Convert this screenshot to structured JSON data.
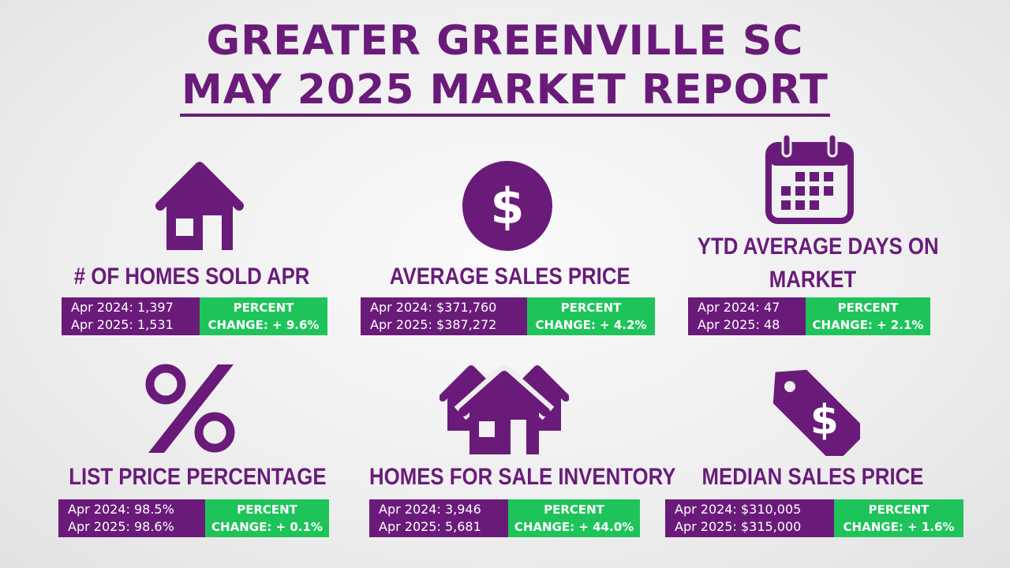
{
  "header": {
    "line1": "GREATER GREENVILLE SC",
    "line2": "MAY 2025 MARKET REPORT"
  },
  "colors": {
    "purple": "#6a1b7a",
    "green": "#1ec45a"
  },
  "cards": [
    {
      "icon": "house-icon",
      "title": "# OF HOMES SOLD APR",
      "line1": "Apr 2024: 1,397",
      "line2": "Apr 2025: 1,531",
      "pct1": "PERCENT",
      "pct2": "CHANGE: + 9.6%"
    },
    {
      "icon": "dollar-icon",
      "title": "AVERAGE SALES PRICE",
      "line1": "Apr 2024: $371,760",
      "line2": "Apr 2025: $387,272",
      "pct1": "PERCENT",
      "pct2": "CHANGE: + 4.2%"
    },
    {
      "icon": "calendar-icon",
      "title_a": "YTD AVERAGE DAYS ON",
      "title_b": "MARKET",
      "line1": "Apr 2024: 47",
      "line2": "Apr 2025: 48",
      "pct1": "PERCENT",
      "pct2": "CHANGE: + 2.1%"
    },
    {
      "icon": "percent-icon",
      "title": "LIST PRICE PERCENTAGE",
      "line1": "Apr 2024: 98.5%",
      "line2": "Apr 2025: 98.6%",
      "pct1": "PERCENT",
      "pct2": "CHANGE: + 0.1%"
    },
    {
      "icon": "houses-icon",
      "title": "HOMES FOR SALE INVENTORY",
      "line1": "Apr 2024: 3,946",
      "line2": "Apr 2025: 5,681",
      "pct1": "PERCENT",
      "pct2": "CHANGE: + 44.0%"
    },
    {
      "icon": "price-tag-icon",
      "title": "MEDIAN SALES PRICE",
      "line1": "Apr 2024: $310,005",
      "line2": "Apr 2025: $315,000",
      "pct1": "PERCENT",
      "pct2": "CHANGE:  + 1.6%"
    }
  ]
}
